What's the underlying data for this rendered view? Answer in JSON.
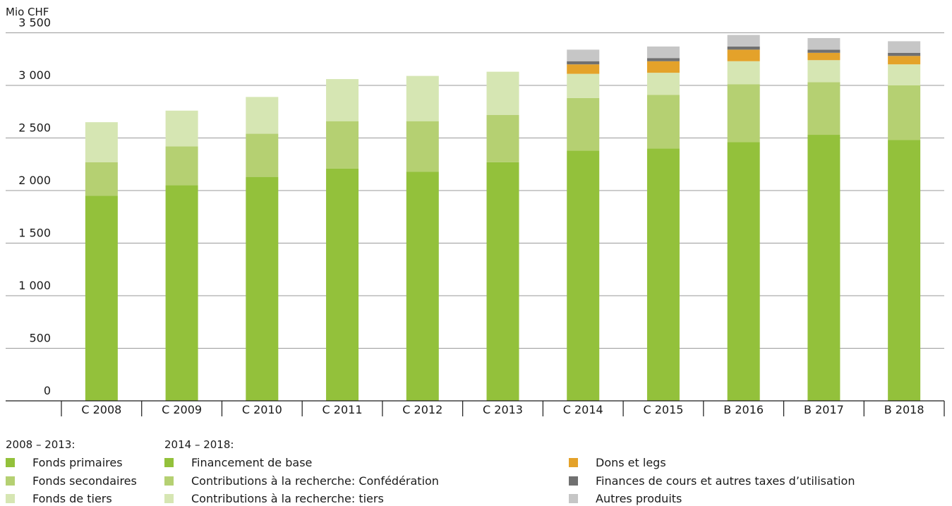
{
  "chart_data": {
    "type": "bar",
    "stacked": true,
    "ylabel": "Mio CHF",
    "ylim": [
      0,
      3500
    ],
    "yticks": [
      0,
      500,
      1000,
      1500,
      2000,
      2500,
      3000,
      3500
    ],
    "ytick_labels": [
      "0",
      "500",
      "1 000",
      "1 500",
      "2 000",
      "2 500",
      "3 000",
      "3 500"
    ],
    "grid": true,
    "legend_position": "bottom",
    "categories": [
      "C 2008",
      "C 2009",
      "C 2010",
      "C 2011",
      "C 2012",
      "C 2013",
      "C 2014",
      "C 2015",
      "B 2016",
      "B 2017",
      "B 2018"
    ],
    "series": [
      {
        "name": "Fonds primaires",
        "group": "2008 – 2013",
        "color": "#93c13b",
        "values": [
          1950,
          2050,
          2130,
          2210,
          2180,
          2270,
          null,
          null,
          null,
          null,
          null
        ]
      },
      {
        "name": "Fonds secondaires",
        "group": "2008 – 2013",
        "color": "#b5d072",
        "values": [
          320,
          370,
          410,
          450,
          480,
          450,
          null,
          null,
          null,
          null,
          null
        ]
      },
      {
        "name": "Fonds de tiers",
        "group": "2008 – 2013",
        "color": "#d6e6b3",
        "values": [
          380,
          340,
          350,
          400,
          430,
          410,
          null,
          null,
          null,
          null,
          null
        ]
      },
      {
        "name": "Financement de base",
        "group": "2014 – 2018",
        "color": "#93c13b",
        "values": [
          null,
          null,
          null,
          null,
          null,
          null,
          2380,
          2400,
          2460,
          2530,
          2480
        ]
      },
      {
        "name": "Contributions à la recherche: Confédération",
        "group": "2014 – 2018",
        "color": "#b5d072",
        "values": [
          null,
          null,
          null,
          null,
          null,
          null,
          500,
          510,
          550,
          500,
          520
        ]
      },
      {
        "name": "Contributions à la recherche: tiers",
        "group": "2014 – 2018",
        "color": "#d6e6b3",
        "values": [
          null,
          null,
          null,
          null,
          null,
          null,
          230,
          210,
          220,
          210,
          200
        ]
      },
      {
        "name": "Dons et legs",
        "group": "",
        "color": "#e4a22a",
        "values": [
          null,
          null,
          null,
          null,
          null,
          null,
          90,
          110,
          110,
          70,
          80
        ]
      },
      {
        "name": "Finances de cours et autres taxes d’utilisation",
        "group": "",
        "color": "#707070",
        "values": [
          null,
          null,
          null,
          null,
          null,
          null,
          30,
          30,
          30,
          30,
          30
        ]
      },
      {
        "name": "Autres produits",
        "group": "",
        "color": "#c6c6c6",
        "values": [
          null,
          null,
          null,
          null,
          null,
          null,
          110,
          110,
          110,
          110,
          110
        ]
      }
    ]
  },
  "legend": {
    "group_heading_1": "2008 – 2013:",
    "group_heading_2": "2014 – 2018:"
  }
}
